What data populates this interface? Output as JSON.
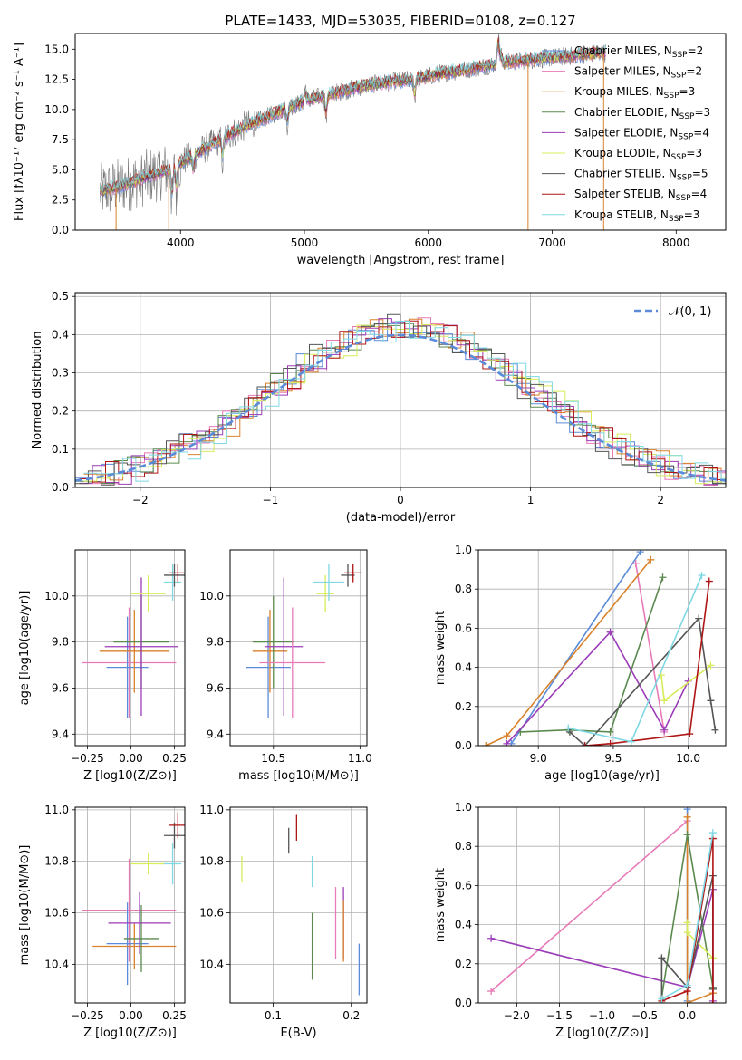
{
  "figure": {
    "title": "PLATE=1433, MJD=53035, FIBERID=0108, z=0.127"
  },
  "chart_data": [
    {
      "id": "spectrum",
      "type": "line",
      "xlabel": "wavelength [Angstrom, rest frame]",
      "ylabel": "Flux [fλ10⁻¹⁷ erg cm⁻² s⁻¹ A⁻¹]",
      "xlim": [
        3150,
        8400
      ],
      "ylim": [
        0,
        16.3
      ],
      "xticks": [
        4000,
        5000,
        6000,
        7000,
        8000
      ],
      "yticks": [
        0.0,
        2.5,
        5.0,
        7.5,
        10.0,
        12.5,
        15.0
      ],
      "xtick_labels": [
        "4000",
        "5000",
        "6000",
        "7000",
        "8000"
      ],
      "ytick_labels": [
        "0.0",
        "2.5",
        "5.0",
        "7.5",
        "10.0",
        "12.5",
        "15.0"
      ],
      "grid": false,
      "legend_position": "right",
      "series": [
        {
          "name": "Chabrier MILES, N",
          "ssp": "SSP",
          "n": "=2",
          "color": "#5b8bd8"
        },
        {
          "name": "Salpeter MILES, N",
          "ssp": "SSP",
          "n": "=2",
          "color": "#e87ab8"
        },
        {
          "name": "Kroupa MILES, N",
          "ssp": "SSP",
          "n": "=3",
          "color": "#d9822b"
        },
        {
          "name": "Chabrier ELODIE, N",
          "ssp": "SSP",
          "n": "=3",
          "color": "#5a8a4e"
        },
        {
          "name": "Salpeter ELODIE, N",
          "ssp": "SSP",
          "n": "=4",
          "color": "#9b3cb8"
        },
        {
          "name": "Kroupa ELODIE, N",
          "ssp": "SSP",
          "n": "=3",
          "color": "#d8ec5a"
        },
        {
          "name": "Chabrier STELIB, N",
          "ssp": "SSP",
          "n": "=5",
          "color": "#555555"
        },
        {
          "name": "Salpeter STELIB, N",
          "ssp": "SSP",
          "n": "=4",
          "color": "#b01515"
        },
        {
          "name": "Kroupa STELIB, N",
          "ssp": "SSP",
          "n": "=3",
          "color": "#7fd8e4"
        }
      ],
      "continuum": {
        "x": [
          3350,
          3500,
          3700,
          3900,
          4100,
          4300,
          4500,
          4700,
          4900,
          5100,
          5300,
          5500,
          5700,
          5900,
          6100,
          6300,
          6500,
          6700,
          6900,
          7100,
          7300,
          7400
        ],
        "y": [
          3.2,
          3.6,
          4.3,
          5.0,
          6.2,
          7.4,
          8.5,
          9.4,
          10.3,
          11.0,
          11.5,
          12.0,
          12.3,
          12.5,
          13.0,
          13.3,
          13.7,
          14.0,
          14.2,
          14.4,
          14.6,
          14.7
        ]
      }
    },
    {
      "id": "residuals",
      "type": "histogram",
      "xlabel": "(data-model)/error",
      "ylabel": "Normed distribution",
      "xlim": [
        -2.5,
        2.5
      ],
      "ylim": [
        0,
        0.51
      ],
      "xticks": [
        -2,
        -1,
        0,
        1,
        2
      ],
      "yticks": [
        0.0,
        0.1,
        0.2,
        0.3,
        0.4,
        0.5
      ],
      "xtick_labels": [
        "−2",
        "−1",
        "0",
        "1",
        "2"
      ],
      "ytick_labels": [
        "0.0",
        "0.1",
        "0.2",
        "0.3",
        "0.4",
        "0.5"
      ],
      "grid": true,
      "legend_position": "top-right",
      "legend_label": "𝒩(0, 1)",
      "normal_curve": {
        "mean": 0,
        "sigma": 1,
        "color": "#5b8bd8"
      }
    },
    {
      "id": "age-vs-Z",
      "type": "scatter",
      "xlabel": "Z [log10(Z/Z⊙)]",
      "ylabel": "age  [log10(age/yr)]",
      "xlim": [
        -0.32,
        0.31
      ],
      "ylim": [
        9.35,
        10.2
      ],
      "xticks": [
        -0.25,
        0.0,
        0.25
      ],
      "yticks": [
        9.4,
        9.6,
        9.8,
        10.0
      ],
      "xtick_labels": [
        "−0.25",
        "0.00",
        "0.25"
      ],
      "ytick_labels": [
        "9.4",
        "9.6",
        "9.8",
        "10.0"
      ],
      "grid": true,
      "points": [
        {
          "color": "#e87ab8",
          "x": -0.01,
          "xerr": 0.27,
          "y": 9.71,
          "yerr": 0.24
        },
        {
          "color": "#5b8bd8",
          "x": -0.02,
          "xerr": 0.12,
          "y": 9.69,
          "yerr": 0.22
        },
        {
          "color": "#d9822b",
          "x": 0.02,
          "xerr": 0.2,
          "y": 9.76,
          "yerr": 0.18
        },
        {
          "color": "#5a8a4e",
          "x": 0.06,
          "xerr": 0.16,
          "y": 9.8,
          "yerr": 0.2
        },
        {
          "color": "#9b3cb8",
          "x": 0.06,
          "xerr": 0.21,
          "y": 9.78,
          "yerr": 0.3
        },
        {
          "color": "#d8ec5a",
          "x": 0.1,
          "xerr": 0.1,
          "y": 10.01,
          "yerr": 0.08
        },
        {
          "color": "#7fd8e4",
          "x": 0.24,
          "xerr": 0.05,
          "y": 10.06,
          "yerr": 0.08
        },
        {
          "color": "#555555",
          "x": 0.25,
          "xerr": 0.06,
          "y": 10.09,
          "yerr": 0.05
        },
        {
          "color": "#b01515",
          "x": 0.27,
          "xerr": 0.05,
          "y": 10.1,
          "yerr": 0.04
        }
      ]
    },
    {
      "id": "age-vs-mass",
      "type": "scatter",
      "xlabel": "mass [log10(M/M⊙)]",
      "ylabel": "",
      "xlim": [
        10.25,
        11.04
      ],
      "ylim": [
        9.35,
        10.2
      ],
      "xticks": [
        10.5,
        11.0
      ],
      "yticks": [
        9.4,
        9.6,
        9.8,
        10.0
      ],
      "xtick_labels": [
        "10.5",
        "11.0"
      ],
      "ytick_labels": [
        "9.4",
        "9.6",
        "9.8",
        "10.0"
      ],
      "grid": true,
      "points": [
        {
          "color": "#5b8bd8",
          "x": 10.47,
          "xerr": 0.13,
          "y": 9.69,
          "yerr": 0.22
        },
        {
          "color": "#d9822b",
          "x": 10.48,
          "xerr": 0.1,
          "y": 9.76,
          "yerr": 0.18
        },
        {
          "color": "#5a8a4e",
          "x": 10.5,
          "xerr": 0.12,
          "y": 9.8,
          "yerr": 0.2
        },
        {
          "color": "#9b3cb8",
          "x": 10.56,
          "xerr": 0.11,
          "y": 9.78,
          "yerr": 0.3
        },
        {
          "color": "#e87ab8",
          "x": 10.61,
          "xerr": 0.19,
          "y": 9.71,
          "yerr": 0.24
        },
        {
          "color": "#d8ec5a",
          "x": 10.8,
          "xerr": 0.05,
          "y": 10.01,
          "yerr": 0.08
        },
        {
          "color": "#7fd8e4",
          "x": 10.82,
          "xerr": 0.09,
          "y": 10.06,
          "yerr": 0.08
        },
        {
          "color": "#555555",
          "x": 10.93,
          "xerr": 0.04,
          "y": 10.09,
          "yerr": 0.05
        },
        {
          "color": "#b01515",
          "x": 10.96,
          "xerr": 0.05,
          "y": 10.1,
          "yerr": 0.04
        }
      ]
    },
    {
      "id": "weight-vs-age",
      "type": "line",
      "xlabel": "age  [log10(age/yr)]",
      "ylabel": "mass weight",
      "xlim": [
        8.6,
        10.25
      ],
      "ylim": [
        0,
        1.0
      ],
      "xticks": [
        9.0,
        9.5,
        10.0
      ],
      "yticks": [
        0.0,
        0.2,
        0.4,
        0.6,
        0.8,
        1.0
      ],
      "xtick_labels": [
        "9.0",
        "9.5",
        "10.0"
      ],
      "ytick_labels": [
        "0.0",
        "0.2",
        "0.4",
        "0.6",
        "0.8",
        "1.0"
      ],
      "grid": true,
      "series": [
        {
          "color": "#5b8bd8",
          "x": [
            8.82,
            9.68
          ],
          "y": [
            0.01,
            0.99
          ]
        },
        {
          "color": "#e87ab8",
          "x": [
            9.65,
            9.84
          ],
          "y": [
            0.93,
            0.07
          ]
        },
        {
          "color": "#d9822b",
          "x": [
            8.65,
            8.79,
            9.75
          ],
          "y": [
            0.0,
            0.05,
            0.95
          ]
        },
        {
          "color": "#5a8a4e",
          "x": [
            8.88,
            9.2,
            9.48,
            9.83
          ],
          "y": [
            0.07,
            0.08,
            0.07,
            0.86
          ]
        },
        {
          "color": "#9b3cb8",
          "x": [
            8.79,
            9.48,
            9.84,
            10.0
          ],
          "y": [
            0.01,
            0.58,
            0.08,
            0.33
          ]
        },
        {
          "color": "#d8ec5a",
          "x": [
            9.82,
            9.84,
            10.15
          ],
          "y": [
            0.36,
            0.23,
            0.41
          ]
        },
        {
          "color": "#555555",
          "x": [
            9.21,
            9.31,
            10.07,
            10.15,
            10.18
          ],
          "y": [
            0.07,
            0.0,
            0.65,
            0.23,
            0.08
          ]
        },
        {
          "color": "#b01515",
          "x": [
            9.31,
            9.48,
            10.01,
            10.14
          ],
          "y": [
            0.0,
            0.01,
            0.06,
            0.84
          ]
        },
        {
          "color": "#7fd8e4",
          "x": [
            9.2,
            9.62,
            10.09
          ],
          "y": [
            0.09,
            0.02,
            0.87
          ]
        }
      ]
    },
    {
      "id": "mass-vs-Z",
      "type": "scatter",
      "xlabel": "Z [log10(Z/Z⊙)]",
      "ylabel": "mass [log10(M/M⊙)]",
      "xlim": [
        -0.32,
        0.31
      ],
      "ylim": [
        10.25,
        11.01
      ],
      "xticks": [
        -0.25,
        0.0,
        0.25
      ],
      "yticks": [
        10.4,
        10.6,
        10.8,
        11.0
      ],
      "xtick_labels": [
        "−0.25",
        "0.00",
        "0.25"
      ],
      "ytick_labels": [
        "10.4",
        "10.6",
        "10.8",
        "11.0"
      ],
      "grid": true,
      "points": [
        {
          "color": "#e87ab8",
          "x": -0.01,
          "xerr": 0.27,
          "y": 10.61,
          "yerr": 0.2
        },
        {
          "color": "#5b8bd8",
          "x": -0.02,
          "xerr": 0.12,
          "y": 10.48,
          "yerr": 0.16
        },
        {
          "color": "#d9822b",
          "x": 0.02,
          "xerr": 0.24,
          "y": 10.47,
          "yerr": 0.09
        },
        {
          "color": "#5a8a4e",
          "x": 0.06,
          "xerr": 0.1,
          "y": 10.5,
          "yerr": 0.13
        },
        {
          "color": "#9b3cb8",
          "x": 0.05,
          "xerr": 0.18,
          "y": 10.56,
          "yerr": 0.12
        },
        {
          "color": "#d8ec5a",
          "x": 0.1,
          "xerr": 0.1,
          "y": 10.79,
          "yerr": 0.04
        },
        {
          "color": "#7fd8e4",
          "x": 0.24,
          "xerr": 0.05,
          "y": 10.79,
          "yerr": 0.08
        },
        {
          "color": "#555555",
          "x": 0.25,
          "xerr": 0.06,
          "y": 10.9,
          "yerr": 0.05
        },
        {
          "color": "#b01515",
          "x": 0.27,
          "xerr": 0.05,
          "y": 10.94,
          "yerr": 0.05
        }
      ]
    },
    {
      "id": "mass-vs-EBV",
      "type": "scatter",
      "xlabel": "E(B-V)",
      "ylabel": "",
      "xlim": [
        0.045,
        0.22
      ],
      "ylim": [
        10.25,
        11.01
      ],
      "xticks": [
        0.1,
        0.2
      ],
      "yticks": [
        10.4,
        10.6,
        10.8,
        11.0
      ],
      "xtick_labels": [
        "0.1",
        "0.2"
      ],
      "ytick_labels": [
        "10.4",
        "10.6",
        "10.8",
        "11.0"
      ],
      "grid": true,
      "points": [
        {
          "color": "#d8ec5a",
          "x": 0.06,
          "y": 10.77,
          "yerr": 0.05
        },
        {
          "color": "#555555",
          "x": 0.12,
          "y": 10.88,
          "yerr": 0.05
        },
        {
          "color": "#b01515",
          "x": 0.13,
          "y": 10.93,
          "yerr": 0.05
        },
        {
          "color": "#7fd8e4",
          "x": 0.15,
          "y": 10.76,
          "yerr": 0.06
        },
        {
          "color": "#5a8a4e",
          "x": 0.15,
          "y": 10.47,
          "yerr": 0.13
        },
        {
          "color": "#e87ab8",
          "x": 0.18,
          "y": 10.56,
          "yerr": 0.14
        },
        {
          "color": "#9b3cb8",
          "x": 0.19,
          "y": 10.56,
          "yerr": 0.14
        },
        {
          "color": "#d9822b",
          "x": 0.19,
          "y": 10.53,
          "yerr": 0.12
        },
        {
          "color": "#5b8bd8",
          "x": 0.21,
          "y": 10.38,
          "yerr": 0.1
        }
      ]
    },
    {
      "id": "weight-vs-Z",
      "type": "line",
      "xlabel": "Z [log10(Z/Z⊙)]",
      "ylabel": "mass weight",
      "xlim": [
        -2.45,
        0.45
      ],
      "ylim": [
        0,
        1.0
      ],
      "xticks": [
        -2.0,
        -1.5,
        -1.0,
        -0.5,
        0.0
      ],
      "yticks": [
        0.0,
        0.2,
        0.4,
        0.6,
        0.8,
        1.0
      ],
      "xtick_labels": [
        "−2.0",
        "−1.5",
        "−1.0",
        "−0.5",
        "0.0"
      ],
      "ytick_labels": [
        "0.0",
        "0.2",
        "0.4",
        "0.6",
        "0.8",
        "1.0"
      ],
      "grid": true,
      "series": [
        {
          "color": "#e87ab8",
          "x": [
            -2.3,
            0.0
          ],
          "y": [
            0.06,
            0.93
          ]
        },
        {
          "color": "#9b3cb8",
          "x": [
            -2.3,
            0.0,
            0.3,
            0.3
          ],
          "y": [
            0.33,
            0.08,
            0.58,
            0.01
          ]
        },
        {
          "color": "#5b8bd8",
          "x": [
            0.0,
            0.0
          ],
          "y": [
            0.99,
            0.01
          ]
        },
        {
          "color": "#d9822b",
          "x": [
            0.0,
            0.0,
            0.3
          ],
          "y": [
            0.95,
            0.0,
            0.05
          ]
        },
        {
          "color": "#5a8a4e",
          "x": [
            -0.3,
            0.0,
            0.3,
            0.3
          ],
          "y": [
            0.03,
            0.86,
            0.08,
            0.07
          ]
        },
        {
          "color": "#d8ec5a",
          "x": [
            0.0,
            0.0,
            0.3
          ],
          "y": [
            0.41,
            0.36,
            0.23
          ]
        },
        {
          "color": "#555555",
          "x": [
            -0.3,
            -0.3,
            0.0,
            0.3,
            0.3
          ],
          "y": [
            0.0,
            0.23,
            0.08,
            0.65,
            0.07
          ]
        },
        {
          "color": "#b01515",
          "x": [
            -0.3,
            0.0,
            0.3,
            0.3
          ],
          "y": [
            0.01,
            0.06,
            0.84,
            0.0
          ]
        },
        {
          "color": "#7fd8e4",
          "x": [
            -0.3,
            0.0,
            0.3
          ],
          "y": [
            0.02,
            0.09,
            0.87
          ]
        }
      ]
    }
  ]
}
